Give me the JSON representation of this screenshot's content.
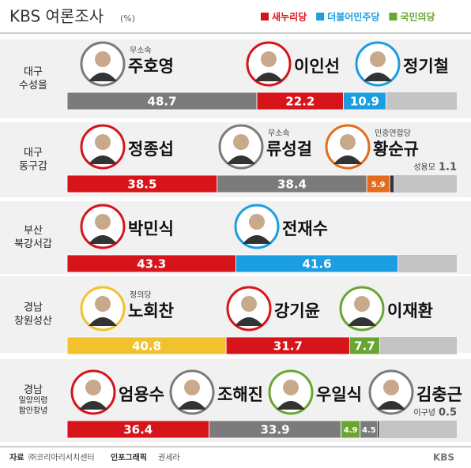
{
  "chart_data": {
    "type": "stacked_barh",
    "title": "KBS 여론조사",
    "unit": "(%)",
    "xlim": [
      0,
      100
    ],
    "remainder_color": "#c4c4c4",
    "legend": [
      {
        "name": "새누리당",
        "color": "#d7141a"
      },
      {
        "name": "더불어민주당",
        "color": "#1b9de2"
      },
      {
        "name": "국민의당",
        "color": "#6aa532"
      }
    ],
    "rows": [
      {
        "label": [
          "대구",
          "수성을"
        ],
        "candidates": [
          {
            "name": "주호영",
            "party": "무소속",
            "value": 48.7,
            "color": "#7b7b7b"
          },
          {
            "name": "이인선",
            "value": 22.2,
            "color": "#d7141a"
          },
          {
            "name": "정기철",
            "value": 10.9,
            "color": "#1b9de2"
          }
        ]
      },
      {
        "label": [
          "대구",
          "동구갑"
        ],
        "candidates": [
          {
            "name": "정종섭",
            "value": 38.5,
            "color": "#d7141a"
          },
          {
            "name": "류성걸",
            "party": "무소속",
            "value": 38.4,
            "color": "#7b7b7b"
          },
          {
            "name": "황순규",
            "party": "민중연합당",
            "value": 5.9,
            "color": "#e36c1e"
          },
          {
            "name": "성용모",
            "value": 1.1,
            "color": "#333333"
          }
        ]
      },
      {
        "label": [
          "부산",
          "북강서갑"
        ],
        "candidates": [
          {
            "name": "박민식",
            "value": 43.3,
            "color": "#d7141a"
          },
          {
            "name": "전재수",
            "value": 41.6,
            "color": "#1b9de2"
          }
        ]
      },
      {
        "label": [
          "경남",
          "창원성산"
        ],
        "candidates": [
          {
            "name": "노회찬",
            "party": "정의당",
            "value": 40.8,
            "color": "#f2c12e"
          },
          {
            "name": "강기윤",
            "value": 31.7,
            "color": "#d7141a"
          },
          {
            "name": "이재환",
            "value": 7.7,
            "color": "#6aa532"
          }
        ]
      },
      {
        "label": [
          "경남",
          "밀양의령",
          "함안창녕"
        ],
        "candidates": [
          {
            "name": "엄용수",
            "value": 36.4,
            "color": "#d7141a"
          },
          {
            "name": "조해진",
            "value": 33.9,
            "color": "#7b7b7b"
          },
          {
            "name": "우일식",
            "value": 4.9,
            "color": "#6aa532"
          },
          {
            "name": "김충근",
            "value": 4.5,
            "color": "#7b7b7b"
          },
          {
            "name": "이구녕",
            "value": 0.5,
            "color": "#333333"
          }
        ]
      }
    ],
    "source_label": "자료",
    "source": "㈜코리아리서치센터",
    "credit_label": "인포그래픽",
    "credit": "권세라",
    "logo": "KBS"
  }
}
